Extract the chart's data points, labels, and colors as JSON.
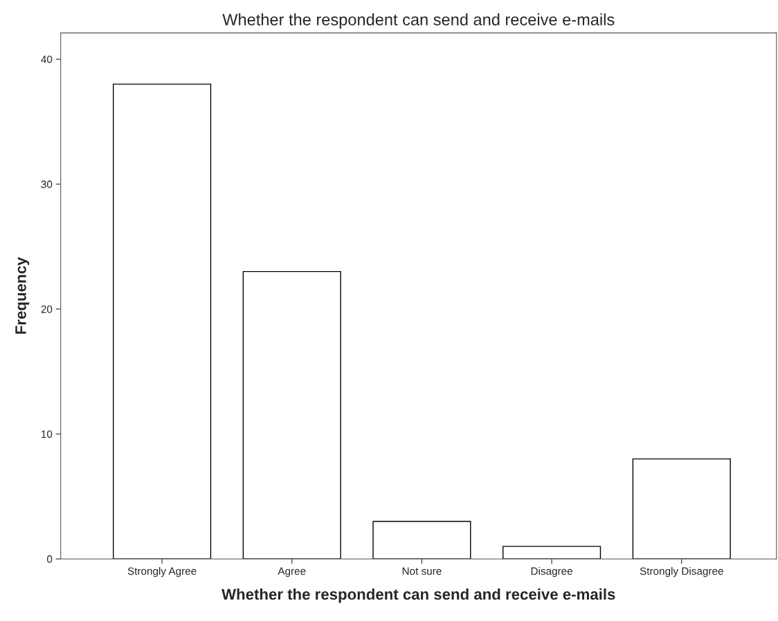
{
  "chart_data": {
    "type": "bar",
    "title": "Whether the respondent can send and receive e-mails",
    "xlabel": "Whether the respondent can send and receive e-mails",
    "ylabel": "Frequency",
    "categories": [
      "Strongly Agree",
      "Agree",
      "Not sure",
      "Disagree",
      "Strongly Disagree"
    ],
    "values": [
      38,
      23,
      3,
      1,
      8
    ],
    "color": "#ffffff",
    "ylim": [
      0,
      42.1
    ],
    "yticks": [
      0,
      10,
      20,
      30,
      40
    ],
    "grid": false
  }
}
